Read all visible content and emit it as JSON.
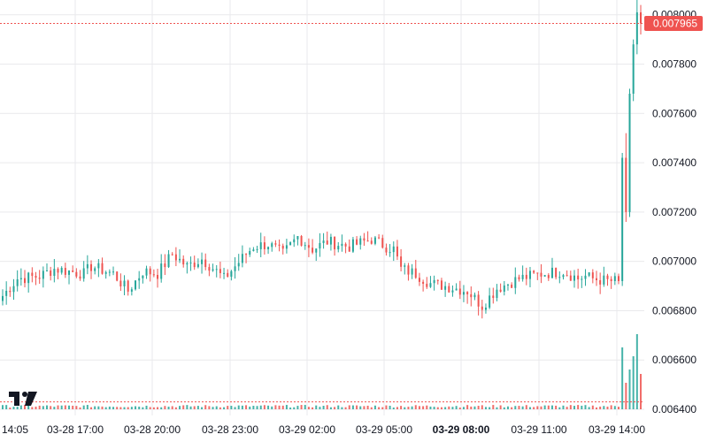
{
  "brand": {
    "logo_text": "TV"
  },
  "colors": {
    "up": "#26a69a",
    "down": "#ef5350",
    "grid": "#e9e9ec",
    "axis_text": "#131722",
    "price_line": "#ef5350",
    "price_tag": "#ef5350"
  },
  "current_price": {
    "value": 0.007965,
    "label": "0.007965"
  },
  "chart_data": {
    "type": "candlestick",
    "title": "",
    "xlabel": "",
    "ylabel": "",
    "ylim": [
      0.006375,
      0.00806
    ],
    "y_ticks": [
      {
        "value": 0.0064,
        "label": "0.006400"
      },
      {
        "value": 0.0066,
        "label": "0.006600"
      },
      {
        "value": 0.0068,
        "label": "0.006800"
      },
      {
        "value": 0.007,
        "label": "0.007000"
      },
      {
        "value": 0.0072,
        "label": "0.007200"
      },
      {
        "value": 0.0074,
        "label": "0.007400"
      },
      {
        "value": 0.0076,
        "label": "0.007600"
      },
      {
        "value": 0.0078,
        "label": "0.007800"
      },
      {
        "value": 0.008,
        "label": "0.008000"
      }
    ],
    "x_ticks": [
      {
        "label": "14:05",
        "bold": false
      },
      {
        "label": "03-28 17:00",
        "bold": false
      },
      {
        "label": "03-28 20:00",
        "bold": false
      },
      {
        "label": "03-28 23:00",
        "bold": false
      },
      {
        "label": "03-29 02:00",
        "bold": false
      },
      {
        "label": "03-29 05:00",
        "bold": false
      },
      {
        "label": "03-29 08:00",
        "bold": true
      },
      {
        "label": "03-29 11:00",
        "bold": false
      },
      {
        "label": "03-29 14:00",
        "bold": false
      }
    ],
    "grid": true,
    "volume_reference_line": 0.00643,
    "anchors": [
      [
        0,
        0.00686
      ],
      [
        4,
        0.00693
      ],
      [
        10,
        0.00694
      ],
      [
        14,
        0.00697
      ],
      [
        22,
        0.00695
      ],
      [
        24,
        0.00698
      ],
      [
        30,
        0.00695
      ],
      [
        34,
        0.00688
      ],
      [
        38,
        0.00696
      ],
      [
        42,
        0.00695
      ],
      [
        46,
        0.00703
      ],
      [
        50,
        0.00698
      ],
      [
        54,
        0.00701
      ],
      [
        58,
        0.00696
      ],
      [
        60,
        0.00693
      ],
      [
        66,
        0.00703
      ],
      [
        68,
        0.00706
      ],
      [
        72,
        0.00707
      ],
      [
        76,
        0.00703
      ],
      [
        80,
        0.0071
      ],
      [
        84,
        0.00705
      ],
      [
        88,
        0.00708
      ],
      [
        94,
        0.00706
      ],
      [
        100,
        0.00709
      ],
      [
        104,
        0.00706
      ],
      [
        106,
        0.00705
      ],
      [
        108,
        0.00697
      ],
      [
        112,
        0.00695
      ],
      [
        116,
        0.00691
      ],
      [
        120,
        0.0069
      ],
      [
        126,
        0.00688
      ],
      [
        130,
        0.00682
      ],
      [
        134,
        0.00689
      ],
      [
        140,
        0.00693
      ],
      [
        146,
        0.00695
      ],
      [
        152,
        0.00696
      ],
      [
        156,
        0.00693
      ],
      [
        158,
        0.00694
      ],
      [
        160,
        0.00693
      ],
      [
        164,
        0.00692
      ],
      [
        166,
        0.00692
      ],
      [
        167,
        0.00692
      ]
    ],
    "spike": [
      {
        "o": 0.00692,
        "h": 0.00744,
        "l": 0.0069,
        "c": 0.00742
      },
      {
        "o": 0.00742,
        "h": 0.00752,
        "l": 0.00716,
        "c": 0.0072
      },
      {
        "o": 0.0072,
        "h": 0.0077,
        "l": 0.00718,
        "c": 0.00768
      },
      {
        "o": 0.00768,
        "h": 0.0079,
        "l": 0.00765,
        "c": 0.00788
      },
      {
        "o": 0.00788,
        "h": 0.00806,
        "l": 0.00784,
        "c": 0.00801
      },
      {
        "o": 0.00801,
        "h": 0.00804,
        "l": 0.00792,
        "c": 0.007965
      }
    ]
  }
}
